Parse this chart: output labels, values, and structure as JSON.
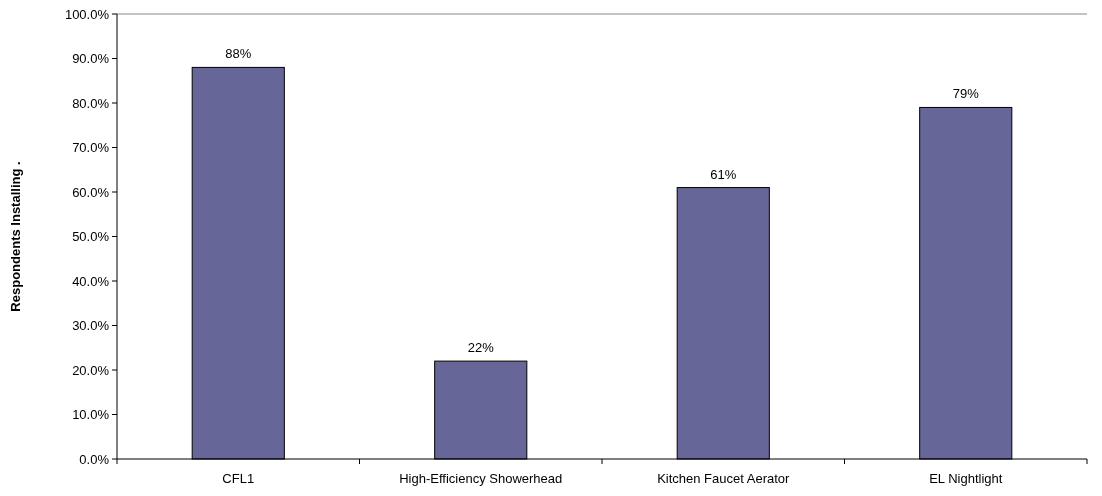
{
  "chart_data": {
    "type": "bar",
    "ylabel": "Respondents Installing .",
    "categories": [
      "CFL1",
      "High-Efficiency Showerhead",
      "Kitchen Faucet Aerator",
      "EL Nightlight"
    ],
    "values": [
      88,
      22,
      61,
      79
    ],
    "color": "#666699",
    "value_labels": [
      "88%",
      "22%",
      "61%",
      "79%"
    ],
    "ylim": [
      0,
      100
    ],
    "yticks": [
      {
        "value": 0,
        "label": "0.0%"
      },
      {
        "value": 10,
        "label": "10.0%"
      },
      {
        "value": 20,
        "label": "20.0%"
      },
      {
        "value": 30,
        "label": "30.0%"
      },
      {
        "value": 40,
        "label": "40.0%"
      },
      {
        "value": 50,
        "label": "50.0%"
      },
      {
        "value": 60,
        "label": "60.0%"
      },
      {
        "value": 70,
        "label": "70.0%"
      },
      {
        "value": 80,
        "label": "80.0%"
      },
      {
        "value": 90,
        "label": "90.0%"
      },
      {
        "value": 100,
        "label": "100.0%"
      }
    ],
    "grid": false
  }
}
